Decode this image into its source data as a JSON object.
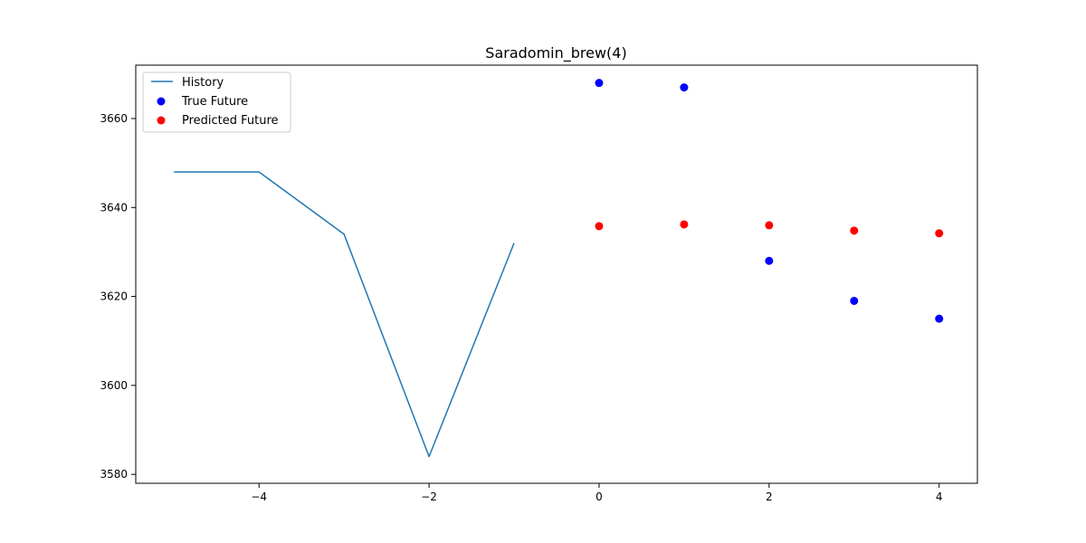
{
  "chart_data": {
    "type": "line",
    "title": "Saradomin_brew(4)",
    "xlabel": "",
    "ylabel": "",
    "xlim": [
      -5.45,
      4.45
    ],
    "ylim": [
      3578,
      3672
    ],
    "x_ticks": [
      -4,
      -2,
      0,
      2,
      4
    ],
    "x_tick_labels": [
      "−4",
      "−2",
      "0",
      "2",
      "4"
    ],
    "y_ticks": [
      3580,
      3600,
      3620,
      3640,
      3660
    ],
    "y_tick_labels": [
      "3580",
      "3600",
      "3620",
      "3640",
      "3660"
    ],
    "grid": false,
    "legend_position": "upper left",
    "series": [
      {
        "name": "History",
        "kind": "line",
        "color": "#1f77b4",
        "x": [
          -5,
          -4,
          -3,
          -2,
          -1
        ],
        "y": [
          3648,
          3648,
          3634,
          3584,
          3632
        ]
      },
      {
        "name": "True Future",
        "kind": "scatter",
        "color": "#0000ff",
        "x": [
          0,
          1,
          2,
          3,
          4
        ],
        "y": [
          3668,
          3667,
          3628,
          3619,
          3615
        ]
      },
      {
        "name": "Predicted Future",
        "kind": "scatter",
        "color": "#ff0000",
        "x": [
          0,
          1,
          2,
          3,
          4
        ],
        "y": [
          3635.8,
          3636.2,
          3636,
          3634.8,
          3634.2
        ]
      }
    ]
  }
}
